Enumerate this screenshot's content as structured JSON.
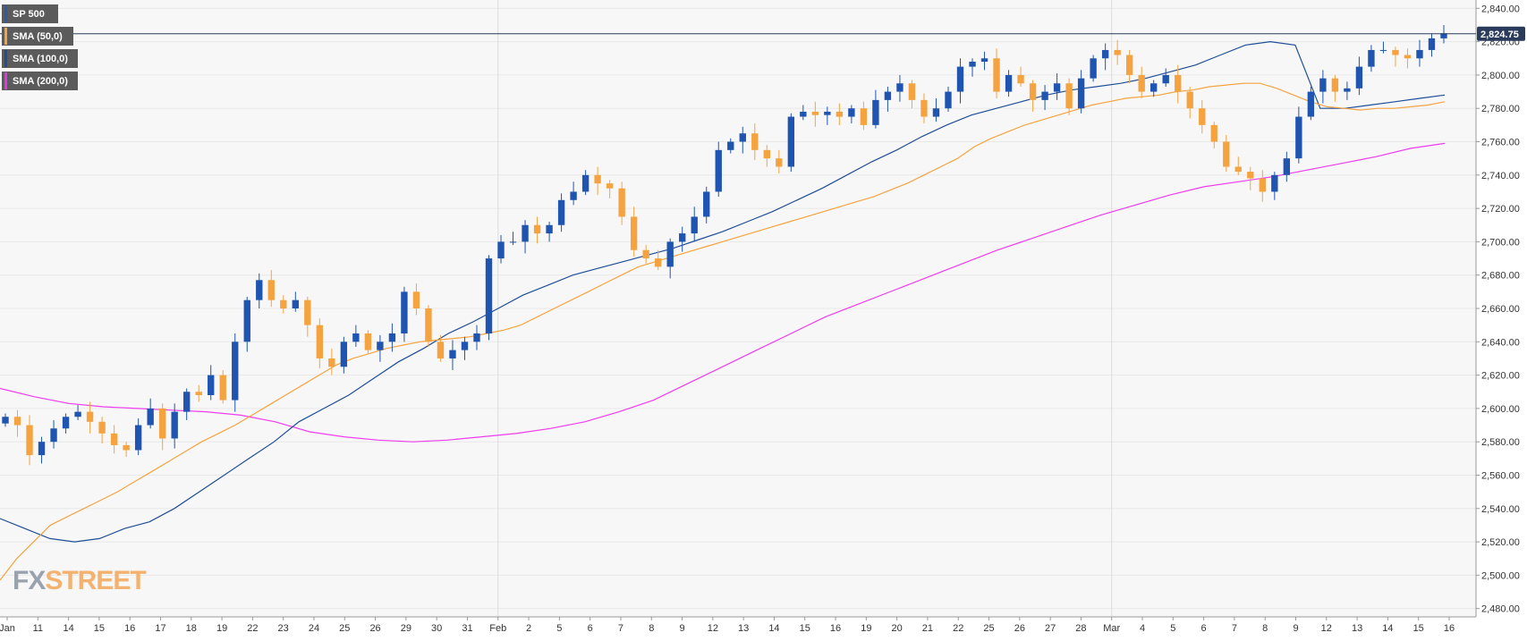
{
  "legend": [
    {
      "label": "SP 500",
      "color": "#2e5aa8"
    },
    {
      "label": "SMA (50,0)",
      "color": "#f5a341"
    },
    {
      "label": "SMA (100,0)",
      "color": "#1f4e96"
    },
    {
      "label": "SMA (200,0)",
      "color": "#e833e8"
    }
  ],
  "logo": {
    "fx": "FX",
    "street": "STREET"
  },
  "current_price": {
    "label": "2,824.75",
    "value": 2824.75
  },
  "colors": {
    "bull": "#1f55b0",
    "bear": "#f5a341",
    "sma50": "#f5a341",
    "sma100": "#1f4e96",
    "sma200": "#ee3cee",
    "grid": "#e8e8e8",
    "background": "#f7f7f7"
  },
  "chart_data": {
    "type": "candlestick",
    "title": "",
    "xlabel": "",
    "ylabel": "",
    "ylim": [
      2475,
      2845
    ],
    "y_ticks": [
      "2,480.00",
      "2,500.00",
      "2,520.00",
      "2,540.00",
      "2,560.00",
      "2,580.00",
      "2,600.00",
      "2,620.00",
      "2,640.00",
      "2,660.00",
      "2,680.00",
      "2,700.00",
      "2,720.00",
      "2,740.00",
      "2,760.00",
      "2,780.00",
      "2,800.00",
      "2,820.00",
      "2,840.00"
    ],
    "x_ticks": [
      "Jan",
      "11",
      "14",
      "15",
      "16",
      "17",
      "18",
      "19",
      "22",
      "23",
      "24",
      "25",
      "26",
      "29",
      "30",
      "31",
      "Feb",
      "2",
      "5",
      "6",
      "7",
      "8",
      "9",
      "12",
      "13",
      "14",
      "15",
      "16",
      "19",
      "20",
      "21",
      "22",
      "25",
      "26",
      "27",
      "28",
      "Mar",
      "4",
      "5",
      "6",
      "7",
      "8",
      "9",
      "12",
      "13",
      "14",
      "15",
      "16"
    ],
    "ohlc_close": [
      2595,
      2590,
      2572,
      2580,
      2588,
      2595,
      2598,
      2592,
      2585,
      2578,
      2575,
      2590,
      2600,
      2582,
      2598,
      2610,
      2608,
      2620,
      2605,
      2640,
      2665,
      2677,
      2665,
      2660,
      2665,
      2650,
      2630,
      2625,
      2640,
      2645,
      2635,
      2640,
      2645,
      2670,
      2660,
      2640,
      2630,
      2635,
      2640,
      2645,
      2690,
      2700,
      2700,
      2710,
      2705,
      2710,
      2725,
      2730,
      2740,
      2735,
      2732,
      2715,
      2695,
      2690,
      2685,
      2700,
      2705,
      2715,
      2730,
      2755,
      2760,
      2765,
      2755,
      2750,
      2745,
      2775,
      2778,
      2776,
      2778,
      2775,
      2780,
      2770,
      2785,
      2790,
      2795,
      2785,
      2775,
      2780,
      2790,
      2805,
      2808,
      2810,
      2790,
      2800,
      2795,
      2785,
      2790,
      2795,
      2780,
      2798,
      2810,
      2815,
      2812,
      2800,
      2790,
      2795,
      2800,
      2790,
      2780,
      2770,
      2760,
      2745,
      2742,
      2738,
      2730,
      2740,
      2750,
      2775,
      2790,
      2798,
      2790,
      2792,
      2805,
      2815,
      2815,
      2812,
      2810,
      2815,
      2822,
      2825
    ],
    "sma50": [
      2497,
      2510,
      2520,
      2530,
      2535,
      2540,
      2545,
      2550,
      2556,
      2562,
      2568,
      2574,
      2580,
      2585,
      2590,
      2596,
      2602,
      2608,
      2614,
      2620,
      2626,
      2630,
      2633,
      2636,
      2638,
      2640,
      2641,
      2642,
      2643,
      2645,
      2647,
      2650,
      2655,
      2660,
      2665,
      2670,
      2675,
      2680,
      2685,
      2688,
      2691,
      2694,
      2697,
      2700,
      2703,
      2706,
      2709,
      2712,
      2715,
      2718,
      2721,
      2724,
      2727,
      2731,
      2735,
      2740,
      2745,
      2750,
      2757,
      2762,
      2766,
      2770,
      2773,
      2776,
      2779,
      2782,
      2784,
      2786,
      2787,
      2788,
      2790,
      2791,
      2793,
      2794,
      2795,
      2795,
      2792,
      2788,
      2784,
      2781,
      2780,
      2779,
      2780,
      2780,
      2781,
      2782,
      2784
    ],
    "sma100": [
      2534,
      2528,
      2522,
      2520,
      2522,
      2528,
      2532,
      2540,
      2550,
      2560,
      2570,
      2580,
      2592,
      2600,
      2608,
      2618,
      2628,
      2636,
      2645,
      2652,
      2660,
      2668,
      2674,
      2680,
      2684,
      2688,
      2692,
      2696,
      2701,
      2706,
      2712,
      2718,
      2725,
      2732,
      2740,
      2748,
      2755,
      2763,
      2770,
      2776,
      2780,
      2784,
      2788,
      2791,
      2793,
      2795,
      2798,
      2802,
      2806,
      2812,
      2818,
      2820,
      2818,
      2780,
      2780,
      2782,
      2784,
      2786,
      2788
    ],
    "sma200": [
      2612,
      2607,
      2603,
      2601,
      2600,
      2599,
      2598,
      2596,
      2592,
      2586,
      2583,
      2581,
      2580,
      2581,
      2583,
      2585,
      2588,
      2592,
      2598,
      2605,
      2615,
      2625,
      2635,
      2645,
      2655,
      2663,
      2671,
      2679,
      2687,
      2695,
      2702,
      2709,
      2716,
      2722,
      2728,
      2733,
      2736,
      2739,
      2743,
      2747,
      2751,
      2756,
      2759
    ]
  }
}
